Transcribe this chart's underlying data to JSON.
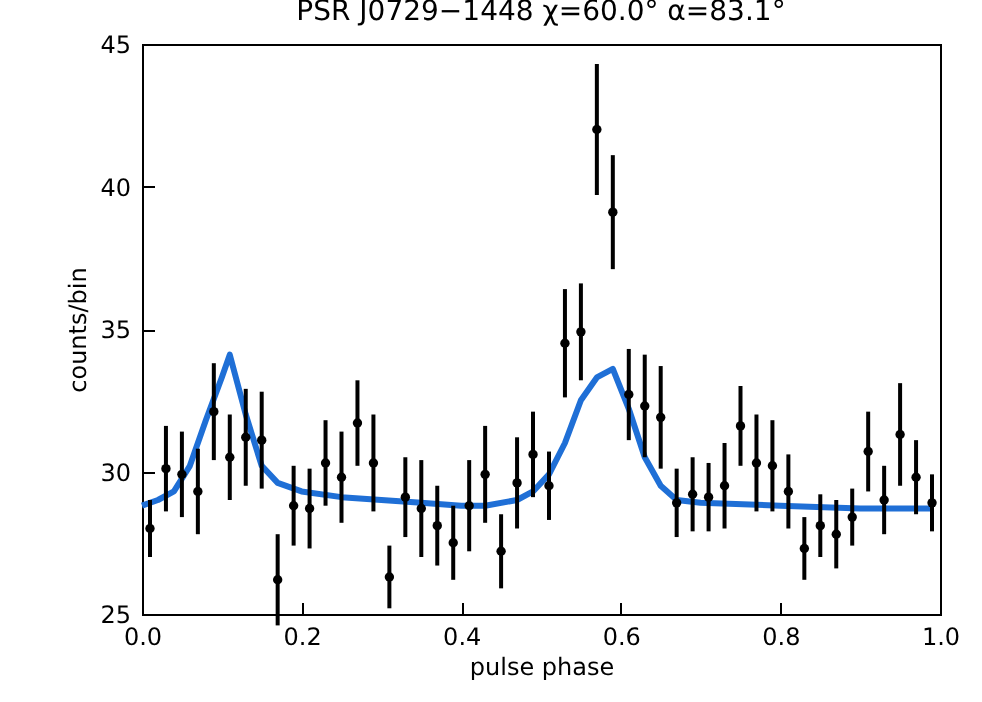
{
  "chart_data": {
    "type": "scatter",
    "title": "PSR J0729−1448   χ=60.0°  α=83.1°",
    "xlabel": "pulse phase",
    "ylabel": "counts/bin",
    "xlim": [
      0,
      1
    ],
    "xticks": [
      {
        "value": 0,
        "label": "0.0"
      },
      {
        "value": 0.2,
        "label": "0.2"
      },
      {
        "value": 0.4,
        "label": "0.4"
      },
      {
        "value": 0.6,
        "label": "0.6"
      },
      {
        "value": 0.8,
        "label": "0.8"
      },
      {
        "value": 1,
        "label": "1.0"
      }
    ],
    "ylim": [
      25,
      45
    ],
    "yticks": [
      25,
      30,
      35,
      40,
      45
    ],
    "grid": false,
    "series": [
      {
        "color": "#000000",
        "marker": "circle",
        "x": [
          0.01,
          0.03,
          0.05,
          0.07,
          0.09,
          0.11,
          0.13,
          0.15,
          0.17,
          0.19,
          0.21,
          0.23,
          0.25,
          0.27,
          0.29,
          0.31,
          0.33,
          0.35,
          0.37,
          0.39,
          0.41,
          0.43,
          0.45,
          0.47,
          0.49,
          0.51,
          0.53,
          0.55,
          0.57,
          0.59,
          0.61,
          0.63,
          0.65,
          0.67,
          0.69,
          0.71,
          0.73,
          0.75,
          0.77,
          0.79,
          0.81,
          0.83,
          0.85,
          0.87,
          0.89,
          0.91,
          0.93,
          0.95,
          0.97,
          0.99
        ],
        "values": [
          28.0,
          30.1,
          29.9,
          29.3,
          32.1,
          30.5,
          31.2,
          31.1,
          26.2,
          28.8,
          28.7,
          30.3,
          29.8,
          31.7,
          30.3,
          26.3,
          29.1,
          28.7,
          28.1,
          27.5,
          28.8,
          29.9,
          27.2,
          29.6,
          30.6,
          29.5,
          34.5,
          34.9,
          42.0,
          39.1,
          32.7,
          32.3,
          31.9,
          28.9,
          29.2,
          29.1,
          29.5,
          31.6,
          30.3,
          30.2,
          29.3,
          27.3,
          28.1,
          27.8,
          28.4,
          30.7,
          29.0,
          31.3,
          29.8,
          28.9
        ],
        "errors": [
          1.0,
          1.5,
          1.5,
          1.5,
          1.7,
          1.5,
          1.7,
          1.7,
          1.6,
          1.4,
          1.4,
          1.5,
          1.6,
          1.5,
          1.7,
          1.1,
          1.4,
          1.7,
          1.4,
          1.3,
          1.6,
          1.7,
          1.3,
          1.6,
          1.5,
          1.2,
          1.9,
          1.7,
          2.3,
          2.0,
          1.6,
          1.8,
          1.8,
          1.2,
          1.3,
          1.2,
          1.5,
          1.4,
          1.7,
          1.6,
          1.3,
          1.1,
          1.1,
          1.2,
          1.0,
          1.4,
          1.2,
          1.8,
          1.3,
          1.0
        ]
      },
      {
        "type": "line",
        "color": "#1f6fd6",
        "line_style": "solid",
        "x": [
          0,
          0.02,
          0.04,
          0.06,
          0.08,
          0.1,
          0.11,
          0.13,
          0.15,
          0.17,
          0.2,
          0.25,
          0.3,
          0.35,
          0.4,
          0.43,
          0.47,
          0.49,
          0.51,
          0.53,
          0.55,
          0.57,
          0.59,
          0.61,
          0.63,
          0.65,
          0.67,
          0.7,
          0.8,
          0.9,
          0.99
        ],
        "values": [
          28.8,
          29.0,
          29.3,
          30.2,
          31.8,
          33.3,
          34.1,
          32.0,
          30.2,
          29.6,
          29.3,
          29.1,
          29.0,
          28.9,
          28.8,
          28.8,
          29.0,
          29.3,
          29.9,
          31.0,
          32.5,
          33.3,
          33.6,
          32.2,
          30.5,
          29.5,
          29.0,
          28.9,
          28.8,
          28.7,
          28.7
        ]
      }
    ]
  }
}
